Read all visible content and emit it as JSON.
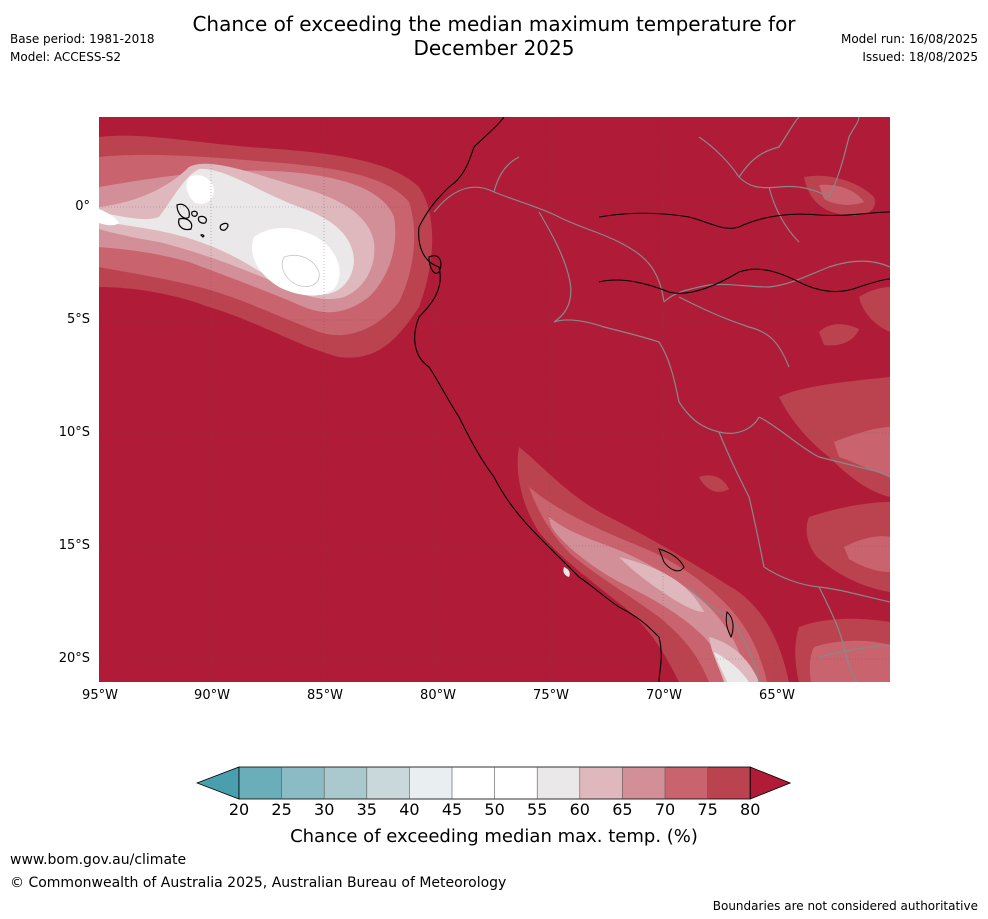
{
  "title_line1": "Chance of exceeding the median maximum temperature for",
  "title_line2": "December 2025",
  "base_period": "Base period: 1981-2018",
  "model": "Model: ACCESS-S2",
  "model_run": "Model run: 16/08/2025",
  "issued": "Issued: 18/08/2025",
  "lat_labels": [
    "0°",
    "5°S",
    "10°S",
    "15°S",
    "20°S"
  ],
  "lon_labels": [
    "95°W",
    "90°W",
    "85°W",
    "80°W",
    "75°W",
    "70°W",
    "65°W"
  ],
  "colorbar": {
    "ticks": [
      "20",
      "25",
      "30",
      "35",
      "40",
      "45",
      "50",
      "55",
      "60",
      "65",
      "70",
      "75",
      "80"
    ],
    "colors": [
      "#6aaeba",
      "#8bbcc6",
      "#a9c9ce",
      "#c9d8da",
      "#e9eef0",
      "#ffffff",
      "#ffffff",
      "#ebe8e9",
      "#dfb8bd",
      "#d38f97",
      "#c9646f",
      "#bb434f"
    ],
    "low_extend_color": "#4a9fae",
    "high_extend_color": "#b01c37",
    "label": "Chance of exceeding median max. temp. (%)"
  },
  "footer": {
    "url": "www.bom.gov.au/climate",
    "copyright": "© Commonwealth of Australia 2025, Australian Bureau of Meteorology",
    "disclaimer": "Boundaries are not considered authoritative"
  }
}
